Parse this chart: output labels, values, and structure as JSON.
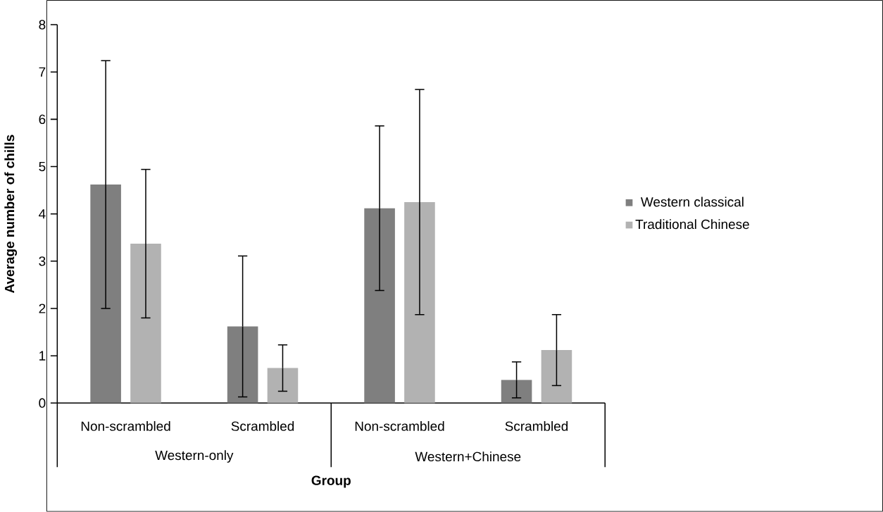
{
  "chart_data": {
    "type": "bar",
    "xlabel": "Group",
    "ylabel": "Average number of chills",
    "categories": [
      "Non-scrambled",
      "Scrambled",
      "Non-scrambled",
      "Scrambled"
    ],
    "annotations": [
      "Western-only",
      "Western+Chinese"
    ],
    "series": [
      {
        "name": "Western classical",
        "color": "#7f7f7f",
        "values": [
          4.62,
          1.62,
          4.12,
          0.49
        ],
        "errors": [
          2.62,
          1.49,
          1.74,
          0.38
        ]
      },
      {
        "name": "Traditional Chinese",
        "color": "#b2b2b2",
        "values": [
          3.37,
          0.74,
          4.25,
          1.12
        ],
        "errors": [
          1.57,
          0.49,
          2.38,
          0.75
        ]
      }
    ],
    "ylim": [
      0,
      8
    ],
    "yticks": [
      0,
      1,
      2,
      3,
      4,
      5,
      6,
      7,
      8
    ],
    "legend": "right",
    "grid": false
  }
}
